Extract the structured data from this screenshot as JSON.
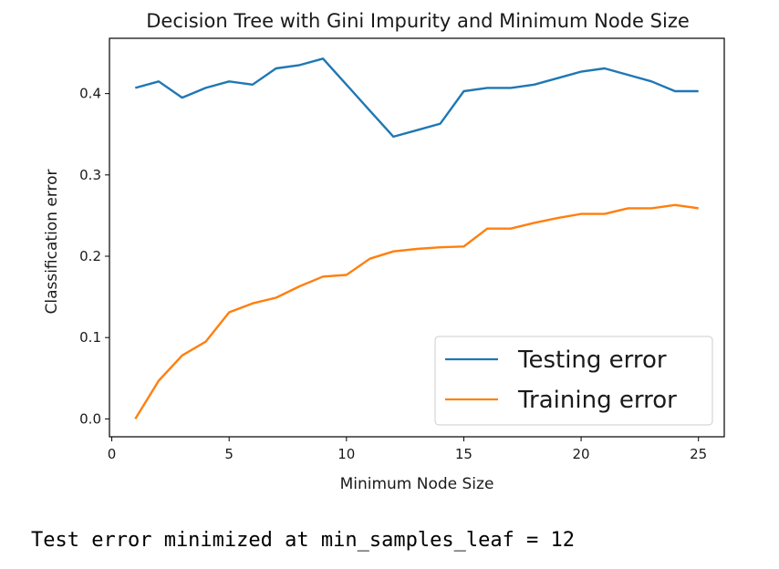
{
  "chart_data": {
    "type": "line",
    "title": "Decision Tree with Gini Impurity and Minimum Node Size",
    "xlabel": "Minimum Node Size",
    "ylabel": "Classification error",
    "xlim": [
      -0.1,
      26.1
    ],
    "ylim": [
      -0.022,
      0.468
    ],
    "x_ticks": [
      0,
      5,
      10,
      15,
      20,
      25
    ],
    "y_ticks": [
      0.0,
      0.1,
      0.2,
      0.3,
      0.4
    ],
    "y_tick_labels": [
      "0.0",
      "0.1",
      "0.2",
      "0.3",
      "0.4"
    ],
    "grid": false,
    "legend_position": "lower-right",
    "x": [
      1,
      2,
      3,
      4,
      5,
      6,
      7,
      8,
      9,
      10,
      11,
      12,
      13,
      14,
      15,
      16,
      17,
      18,
      19,
      20,
      21,
      22,
      23,
      24,
      25
    ],
    "series": [
      {
        "name": "Testing error",
        "color": "#1f77b4",
        "values": [
          0.407,
          0.415,
          0.395,
          0.407,
          0.415,
          0.411,
          0.431,
          0.435,
          0.443,
          0.411,
          0.379,
          0.347,
          0.355,
          0.363,
          0.403,
          0.407,
          0.407,
          0.411,
          0.419,
          0.427,
          0.431,
          0.423,
          0.415,
          0.403,
          0.403
        ]
      },
      {
        "name": "Training error",
        "color": "#ff7f0e",
        "values": [
          0.0,
          0.047,
          0.078,
          0.095,
          0.131,
          0.142,
          0.149,
          0.163,
          0.175,
          0.177,
          0.197,
          0.206,
          0.209,
          0.211,
          0.212,
          0.234,
          0.234,
          0.241,
          0.247,
          0.252,
          0.252,
          0.259,
          0.259,
          0.263,
          0.259
        ]
      }
    ]
  },
  "output_text": "Test error minimized at min_samples_leaf = 12"
}
